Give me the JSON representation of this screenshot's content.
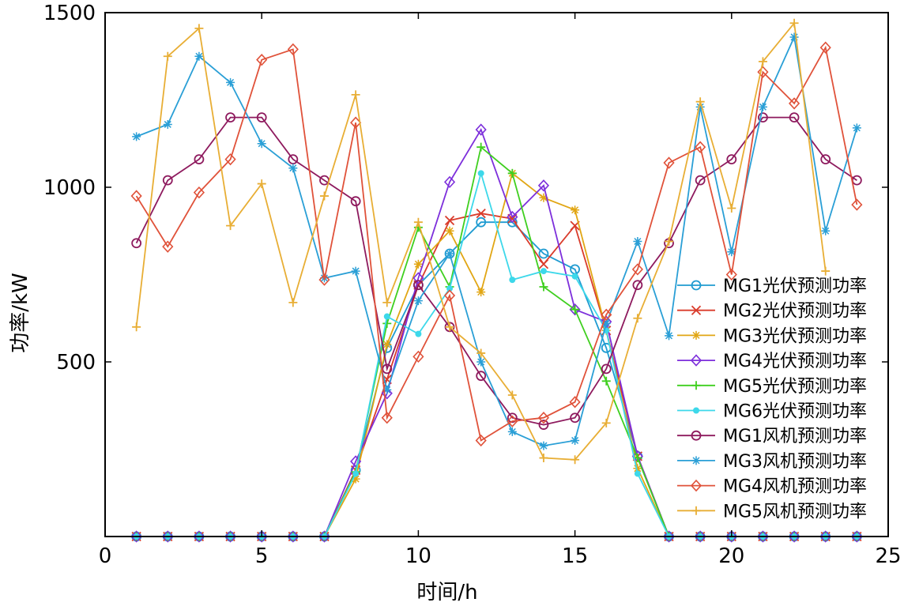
{
  "chart_data": {
    "type": "line",
    "xlabel": "时间/h",
    "ylabel": "功率/kW",
    "xlim": [
      0,
      25
    ],
    "ylim": [
      0,
      1500
    ],
    "xticks": [
      0,
      5,
      10,
      15,
      20,
      25
    ],
    "yticks": [
      500,
      1000,
      1500
    ],
    "legend_position": "right",
    "series": [
      {
        "name": "MG1光伏预测功率",
        "color": "#1f9bd1",
        "marker": "circle",
        "x": [
          1,
          2,
          3,
          4,
          5,
          6,
          7,
          8,
          9,
          10,
          11,
          12,
          13,
          14,
          15,
          16,
          17,
          18,
          19,
          20,
          21,
          22,
          23,
          24
        ],
        "values": [
          0,
          0,
          0,
          0,
          0,
          0,
          0,
          190,
          540,
          720,
          810,
          900,
          900,
          810,
          765,
          540,
          230,
          0,
          0,
          0,
          0,
          0,
          0,
          0
        ]
      },
      {
        "name": "MG2光伏预测功率",
        "color": "#d93b2b",
        "marker": "x",
        "x": [
          1,
          2,
          3,
          4,
          5,
          6,
          7,
          8,
          9,
          10,
          11,
          12,
          13,
          14,
          15,
          16,
          17,
          18,
          19,
          20,
          21,
          22,
          23,
          24
        ],
        "values": [
          0,
          0,
          0,
          0,
          0,
          0,
          0,
          190,
          450,
          720,
          905,
          925,
          910,
          780,
          890,
          590,
          230,
          0,
          0,
          0,
          0,
          0,
          0,
          0
        ]
      },
      {
        "name": "MG3光伏预测功率",
        "color": "#e1a614",
        "marker": "star",
        "x": [
          1,
          2,
          3,
          4,
          5,
          6,
          7,
          8,
          9,
          10,
          11,
          12,
          13,
          14,
          15,
          16,
          17,
          18,
          19,
          20,
          21,
          22,
          23,
          24
        ],
        "values": [
          0,
          0,
          0,
          0,
          0,
          0,
          0,
          165,
          550,
          780,
          875,
          700,
          1040,
          970,
          935,
          590,
          195,
          0,
          0,
          0,
          0,
          0,
          0,
          0
        ]
      },
      {
        "name": "MG4光伏预测功率",
        "color": "#7d2fdb",
        "marker": "diamond",
        "x": [
          1,
          2,
          3,
          4,
          5,
          6,
          7,
          8,
          9,
          10,
          11,
          12,
          13,
          14,
          15,
          16,
          17,
          18,
          19,
          20,
          21,
          22,
          23,
          24
        ],
        "values": [
          0,
          0,
          0,
          0,
          0,
          0,
          0,
          215,
          410,
          740,
          1015,
          1165,
          915,
          1005,
          650,
          615,
          230,
          0,
          0,
          0,
          0,
          0,
          0,
          0
        ]
      },
      {
        "name": "MG5光伏预测功率",
        "color": "#3fcf1f",
        "marker": "plus",
        "x": [
          1,
          2,
          3,
          4,
          5,
          6,
          7,
          8,
          9,
          10,
          11,
          12,
          13,
          14,
          15,
          16,
          17,
          18,
          19,
          20,
          21,
          22,
          23,
          24
        ],
        "values": [
          0,
          0,
          0,
          0,
          0,
          0,
          0,
          185,
          610,
          885,
          715,
          1115,
          1040,
          715,
          650,
          445,
          225,
          0,
          0,
          0,
          0,
          0,
          0,
          0
        ]
      },
      {
        "name": "MG6光伏预测功率",
        "color": "#3dd8ea",
        "marker": "dot",
        "x": [
          1,
          2,
          3,
          4,
          5,
          6,
          7,
          8,
          9,
          10,
          11,
          12,
          13,
          14,
          15,
          16,
          17,
          18,
          19,
          20,
          21,
          22,
          23,
          24
        ],
        "values": [
          0,
          0,
          0,
          0,
          0,
          0,
          0,
          180,
          630,
          580,
          710,
          1040,
          735,
          760,
          745,
          590,
          180,
          0,
          0,
          0,
          0,
          0,
          0,
          0
        ]
      },
      {
        "name": "MG1风机预测功率",
        "color": "#8e1a5e",
        "marker": "circle",
        "x": [
          1,
          2,
          3,
          4,
          5,
          6,
          7,
          8,
          9,
          10,
          11,
          12,
          13,
          14,
          15,
          16,
          17,
          18,
          19,
          20,
          21,
          22,
          23,
          24
        ],
        "values": [
          840,
          1020,
          1080,
          1200,
          1200,
          1080,
          1020,
          960,
          480,
          720,
          600,
          460,
          340,
          320,
          340,
          480,
          720,
          840,
          1020,
          1080,
          1200,
          1200,
          1080,
          1020
        ]
      },
      {
        "name": "MG3风机预测功率",
        "color": "#2a9fd6",
        "marker": "star",
        "x": [
          1,
          2,
          3,
          4,
          5,
          6,
          7,
          8,
          9,
          10,
          11,
          12,
          13,
          14,
          15,
          16,
          17,
          18,
          19,
          20,
          21,
          22,
          23,
          24
        ],
        "values": [
          1145,
          1180,
          1375,
          1300,
          1125,
          1055,
          740,
          760,
          420,
          675,
          810,
          500,
          300,
          260,
          275,
          610,
          845,
          575,
          1230,
          815,
          1230,
          1430,
          875,
          1170
        ]
      },
      {
        "name": "MG4风机预测功率",
        "color": "#e0523a",
        "marker": "diamond",
        "x": [
          1,
          2,
          3,
          4,
          5,
          6,
          7,
          8,
          9,
          10,
          11,
          12,
          13,
          14,
          15,
          16,
          17,
          18,
          19,
          20,
          21,
          22,
          23,
          24
        ],
        "values": [
          975,
          830,
          985,
          1080,
          1365,
          1395,
          735,
          1185,
          340,
          515,
          690,
          275,
          330,
          340,
          385,
          635,
          765,
          1070,
          1115,
          750,
          1330,
          1240,
          1400,
          950
        ]
      },
      {
        "name": "MG5风机预测功率",
        "color": "#e8ae35",
        "marker": "plus",
        "x": [
          1,
          2,
          3,
          4,
          5,
          6,
          7,
          8,
          9,
          10,
          11,
          12,
          13,
          14,
          15,
          16,
          17,
          18,
          19,
          20,
          21,
          22,
          23
        ],
        "values": [
          600,
          1375,
          1455,
          890,
          1010,
          670,
          975,
          1265,
          670,
          900,
          600,
          525,
          405,
          225,
          220,
          325,
          625,
          845,
          1245,
          940,
          1360,
          1470,
          760
        ]
      }
    ]
  }
}
